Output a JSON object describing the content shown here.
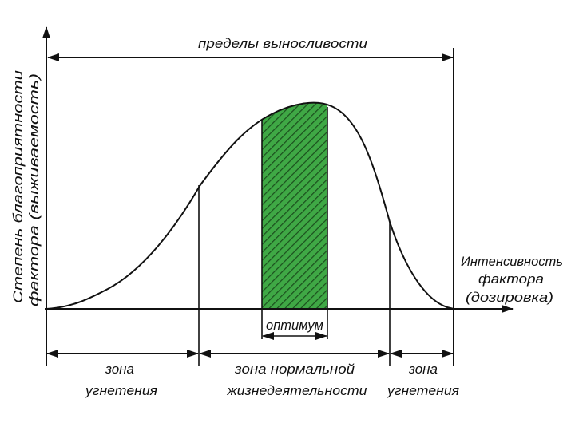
{
  "diagram": {
    "top_label": "пределы выносливости",
    "y_axis_label": [
      "Степень благоприятности",
      "фактора (выживаемость)"
    ],
    "x_axis_label": [
      "Интенсивность",
      "фактора",
      "(дозировка)"
    ],
    "optimum_label": "оптимум",
    "zones": [
      {
        "lines": [
          "зона",
          "угнетения"
        ]
      },
      {
        "lines": [
          "зона нормальной",
          "жизнедеятельности"
        ]
      },
      {
        "lines": [
          "зона",
          "угнетения"
        ]
      }
    ]
  },
  "colors": {
    "optimum_fill": "#3fa845",
    "optimum_hatch": "#1b4f1d",
    "line": "#111111"
  }
}
